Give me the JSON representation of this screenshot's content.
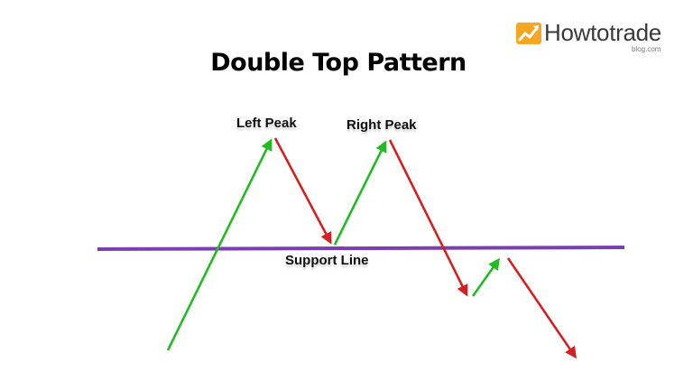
{
  "title": "Double Top Pattern",
  "labels": {
    "left_peak": "Left Peak",
    "right_peak": "Right Peak",
    "support_line": "Support Line"
  },
  "logo": {
    "name": "Howtotrade",
    "subtitle": "blog.com",
    "icon": "rising-chart-icon",
    "accent": "#f5a623"
  },
  "colors": {
    "up_arrow": "#22bb22",
    "down_arrow": "#d42020",
    "support_line": "#7a3fb0"
  },
  "legs": [
    {
      "direction": "up"
    },
    {
      "direction": "down"
    },
    {
      "direction": "up"
    },
    {
      "direction": "down"
    },
    {
      "direction": "up"
    },
    {
      "direction": "down"
    }
  ]
}
